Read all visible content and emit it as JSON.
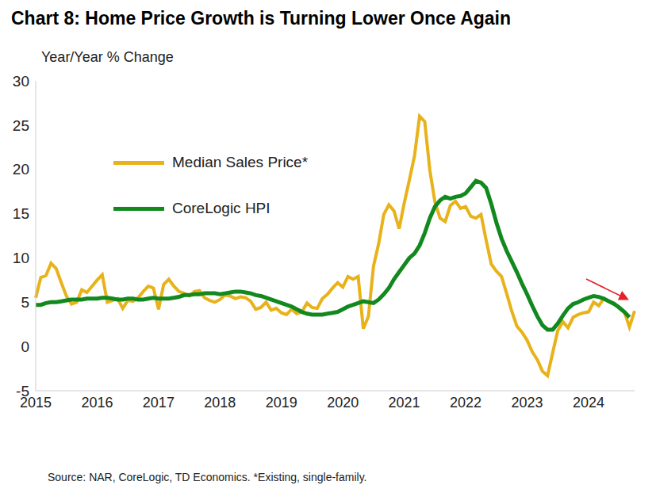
{
  "chart_data": {
    "type": "line",
    "title": "Chart 8: Home Price Growth is Turning Lower Once Again",
    "y_label": "Year/Year % Change",
    "source": "Source: NAR, CoreLogic, TD Economics. *Existing, single-family.",
    "categories": [
      "2015",
      null,
      null,
      null,
      null,
      null,
      null,
      null,
      null,
      null,
      null,
      null,
      "2016",
      null,
      null,
      null,
      null,
      null,
      null,
      null,
      null,
      null,
      null,
      null,
      "2017",
      null,
      null,
      null,
      null,
      null,
      null,
      null,
      null,
      null,
      null,
      null,
      "2018",
      null,
      null,
      null,
      null,
      null,
      null,
      null,
      null,
      null,
      null,
      null,
      "2019",
      null,
      null,
      null,
      null,
      null,
      null,
      null,
      null,
      null,
      null,
      null,
      "2020",
      null,
      null,
      null,
      null,
      null,
      null,
      null,
      null,
      null,
      null,
      null,
      "2021",
      null,
      null,
      null,
      null,
      null,
      null,
      null,
      null,
      null,
      null,
      null,
      "2022",
      null,
      null,
      null,
      null,
      null,
      null,
      null,
      null,
      null,
      null,
      null,
      "2023",
      null,
      null,
      null,
      null,
      null,
      null,
      null,
      null,
      null,
      null,
      null,
      "2024",
      null,
      null,
      null,
      null,
      null,
      null,
      null,
      null,
      null
    ],
    "series": [
      {
        "name": "Median Sales Price*",
        "color": "#E8B21A",
        "values": [
          5.5,
          7.8,
          8.0,
          9.4,
          8.8,
          7.2,
          5.7,
          4.8,
          5.0,
          6.4,
          6.1,
          6.8,
          7.5,
          8.1,
          5.0,
          5.2,
          5.4,
          4.3,
          5.2,
          5.1,
          5.5,
          6.2,
          6.8,
          6.6,
          4.2,
          7.0,
          7.6,
          6.8,
          6.2,
          6.0,
          5.7,
          6.2,
          6.3,
          5.5,
          5.2,
          5.0,
          5.3,
          5.8,
          5.7,
          5.4,
          5.6,
          5.5,
          5.1,
          4.2,
          4.4,
          5.0,
          4.1,
          4.3,
          3.8,
          3.6,
          4.2,
          3.7,
          3.9,
          4.9,
          4.4,
          4.3,
          5.4,
          5.9,
          6.6,
          7.2,
          6.7,
          7.9,
          7.6,
          7.9,
          2.0,
          3.4,
          9.1,
          11.6,
          14.9,
          16.0,
          15.3,
          13.3,
          16.2,
          18.8,
          21.5,
          26.0,
          25.4,
          19.9,
          16.3,
          14.5,
          14.1,
          15.9,
          16.4,
          15.6,
          15.8,
          14.7,
          14.5,
          14.9,
          12.0,
          9.3,
          8.5,
          7.9,
          6.0,
          4.0,
          2.3,
          1.6,
          0.7,
          -0.6,
          -1.5,
          -2.8,
          -3.3,
          -0.7,
          1.8,
          2.8,
          2.1,
          3.3,
          3.6,
          3.8,
          3.9,
          5.0,
          4.6,
          5.4,
          5.1,
          4.9,
          4.3,
          3.9,
          2.2,
          4.0
        ]
      },
      {
        "name": "CoreLogic HPI",
        "color": "#12891F",
        "values": [
          4.7,
          4.7,
          4.9,
          5.0,
          5.0,
          5.1,
          5.2,
          5.3,
          5.3,
          5.3,
          5.4,
          5.4,
          5.4,
          5.5,
          5.5,
          5.4,
          5.3,
          5.3,
          5.4,
          5.4,
          5.3,
          5.3,
          5.4,
          5.5,
          5.4,
          5.4,
          5.4,
          5.5,
          5.6,
          5.8,
          5.8,
          5.9,
          5.9,
          6.0,
          6.0,
          6.0,
          5.9,
          6.0,
          6.1,
          6.2,
          6.2,
          6.1,
          6.0,
          5.8,
          5.7,
          5.5,
          5.3,
          5.1,
          4.9,
          4.7,
          4.5,
          4.2,
          3.9,
          3.7,
          3.6,
          3.6,
          3.6,
          3.7,
          3.8,
          3.9,
          4.2,
          4.5,
          4.7,
          4.9,
          5.1,
          5.0,
          4.9,
          5.3,
          5.9,
          6.6,
          7.6,
          8.4,
          9.2,
          10.0,
          10.5,
          11.4,
          12.8,
          14.5,
          15.8,
          16.5,
          16.9,
          16.7,
          16.9,
          17.0,
          17.3,
          18.0,
          18.7,
          18.5,
          17.9,
          16.1,
          14.0,
          12.2,
          10.8,
          9.6,
          8.4,
          7.1,
          5.9,
          4.6,
          3.4,
          2.4,
          1.9,
          1.9,
          2.6,
          3.5,
          4.3,
          4.8,
          5.0,
          5.3,
          5.5,
          5.7,
          5.6,
          5.4,
          5.1,
          4.8,
          4.4,
          3.9,
          3.3,
          null
        ]
      }
    ],
    "ylim": [
      -5,
      30
    ],
    "yticks": [
      -5,
      0,
      5,
      10,
      15,
      20,
      25,
      30
    ],
    "grid": false,
    "legend": "upper left"
  }
}
